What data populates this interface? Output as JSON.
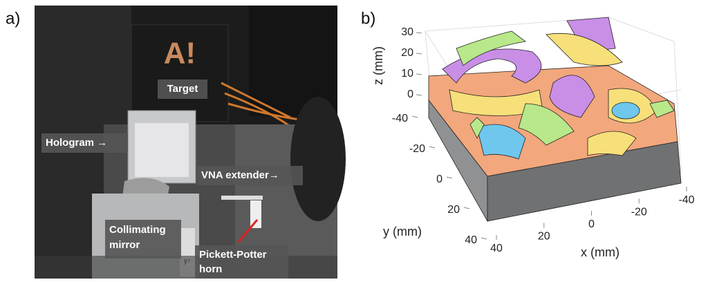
{
  "panel_a": {
    "label": "a)",
    "sign_text": "A!",
    "annotations": [
      "Target",
      "Hologram →",
      "VNA extender→",
      "Collimating mirror",
      "Pickett-Potter horn"
    ],
    "ruler_text": "y↑"
  },
  "panel_b": {
    "label": "b)",
    "z_label": "z (mm)",
    "y_label": "y (mm)",
    "x_label": "x (mm)",
    "zticks": [
      0,
      10,
      20,
      30
    ],
    "yticks": [
      -40,
      -20,
      0,
      20,
      40
    ],
    "xticks": [
      40,
      20,
      0,
      -20,
      -40
    ]
  }
}
